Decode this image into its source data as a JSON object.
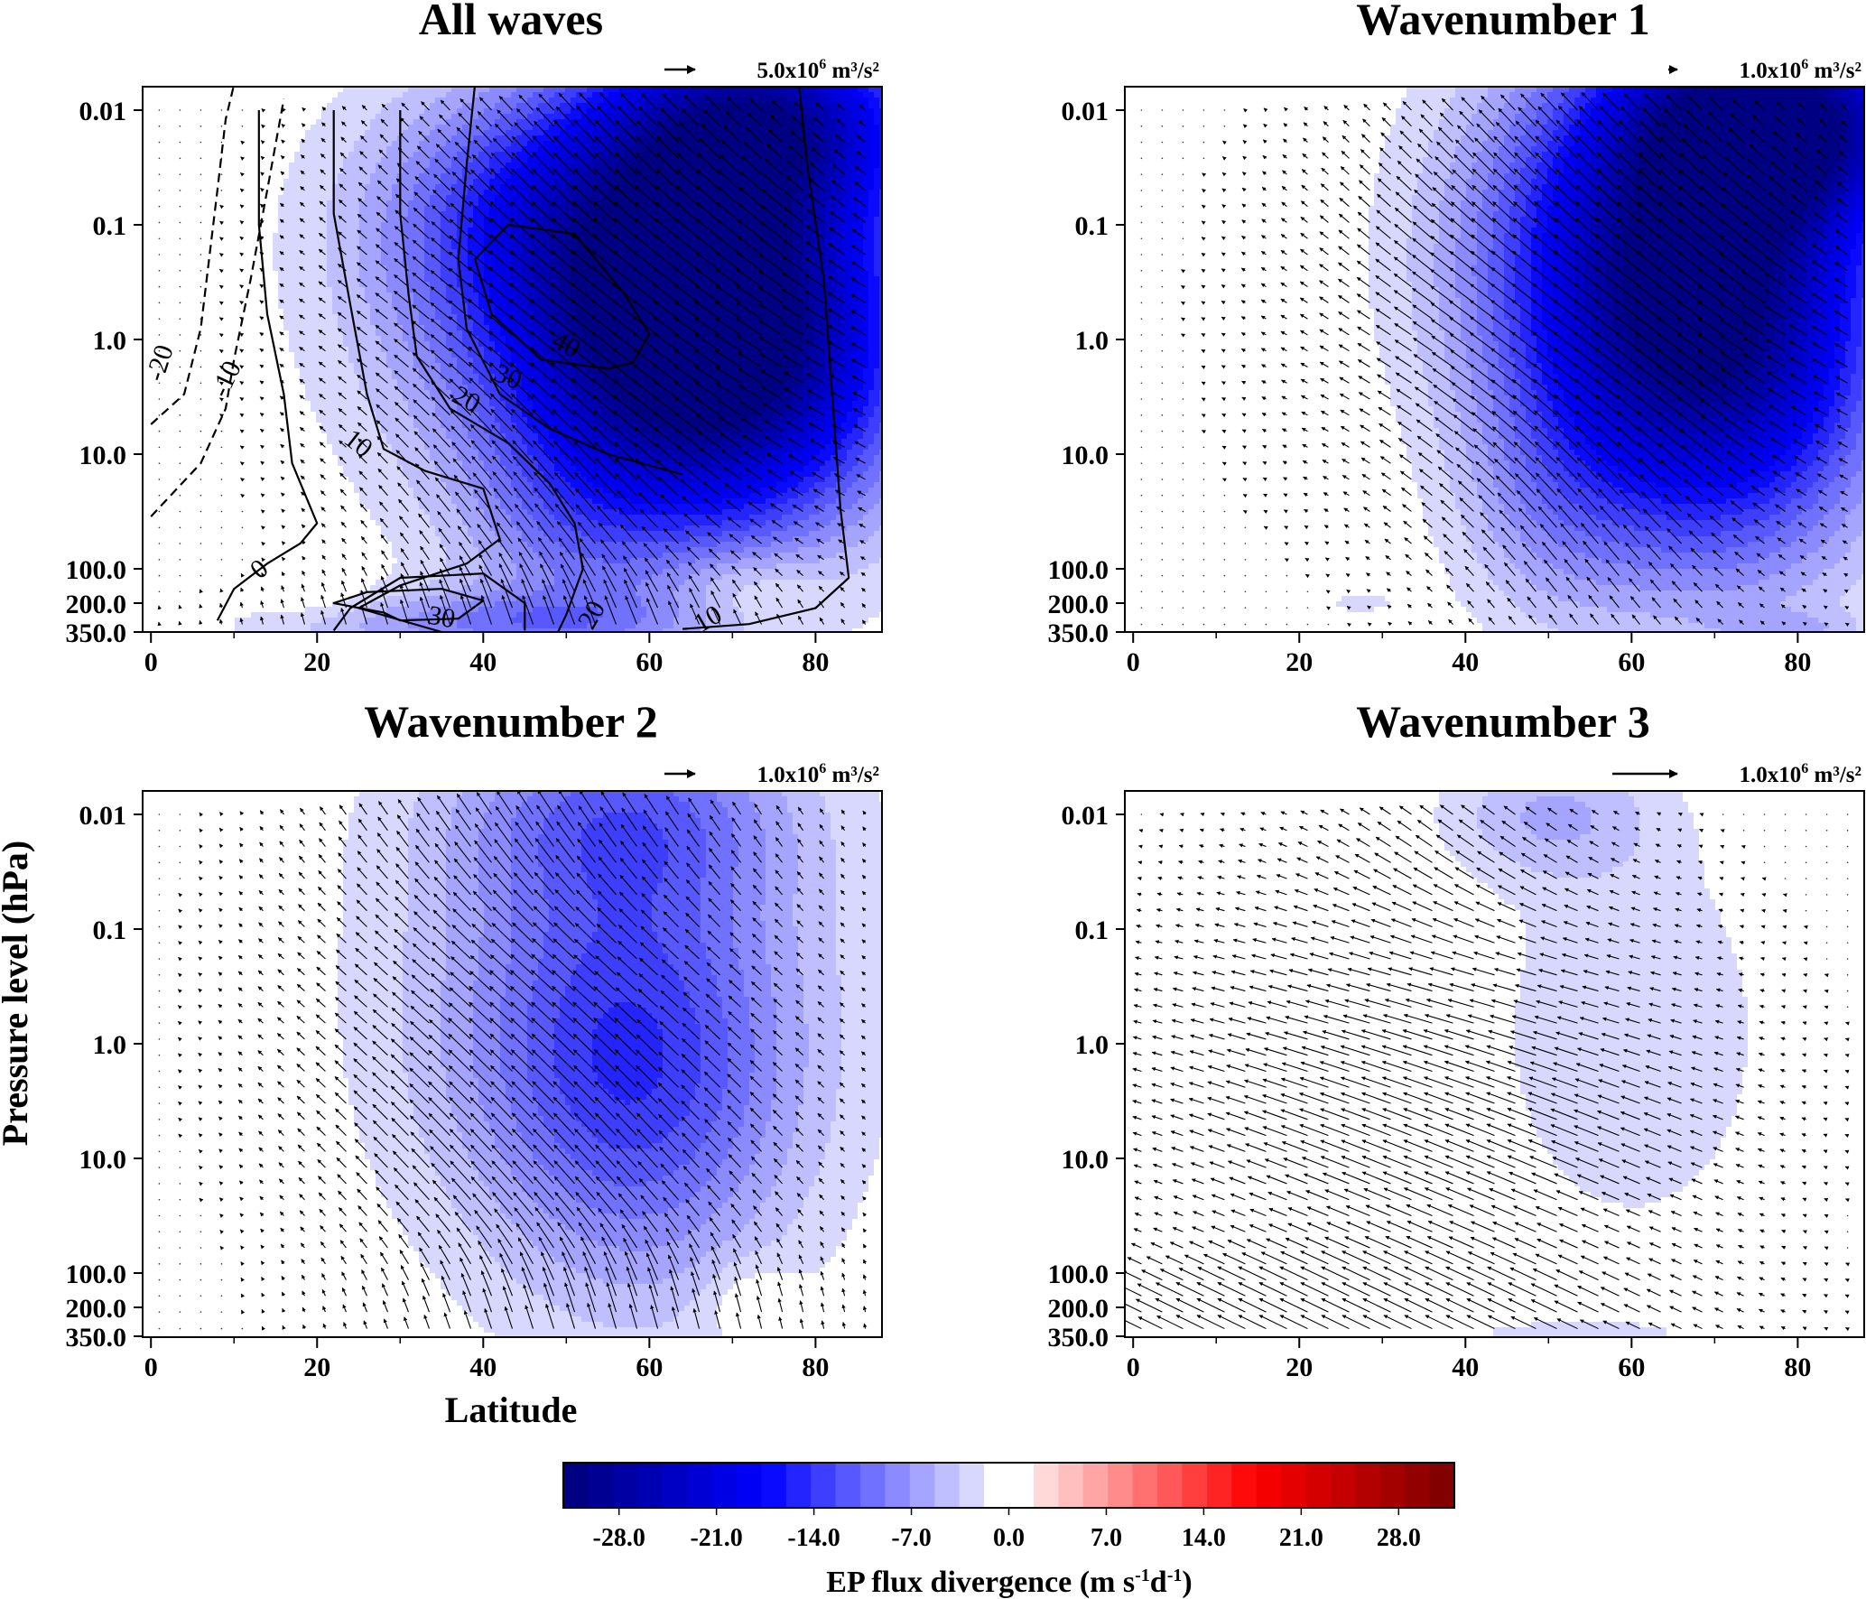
{
  "figure": {
    "ylabel": "Pressure level (hPa)",
    "xlabel": "Latitude",
    "colorbar": {
      "label_main": "EP flux divergence (m s",
      "label_exp1": "-1",
      "label_mid": "d",
      "label_exp2": "-1",
      "label_end": ")",
      "min": -32,
      "max": 32,
      "levels": 36,
      "ticks": [
        "-28.0",
        "-21.0",
        "-14.0",
        "-7.0",
        "0.0",
        "7.0",
        "14.0",
        "21.0",
        "28.0"
      ],
      "tick_values": [
        -28,
        -21,
        -14,
        -7,
        0,
        7,
        14,
        21,
        28
      ],
      "colors": {
        "neg": "#00007a",
        "mid": "#0000ff",
        "zero": "#ffffff",
        "pos": "#ff0000",
        "max": "#7a0000"
      }
    }
  },
  "chart_data": [
    {
      "type": "heatmap",
      "title": "All waves",
      "arrow_scale": {
        "prefix": "5.0x10",
        "exp": "6",
        "unit": " m³/s²"
      },
      "xticks": [
        "0",
        "20",
        "40",
        "60",
        "80"
      ],
      "xtick_values": [
        0,
        20,
        40,
        60,
        80
      ],
      "yticks": [
        "0.01",
        "0.1",
        "1.0",
        "10.0",
        "100.0",
        "200.0",
        "350.0"
      ],
      "xlim": [
        -1,
        88
      ],
      "shading": [
        {
          "lat": 68,
          "plev": 1.0,
          "amp": -32,
          "sx": 15,
          "sy": 1.1
        },
        {
          "lat": 74,
          "plev": 0.012,
          "amp": -22,
          "sx": 13,
          "sy": 0.6
        },
        {
          "lat": 55,
          "plev": 0.4,
          "amp": -10,
          "sx": 20,
          "sy": 1.4
        },
        {
          "lat": 48,
          "plev": 0.08,
          "amp": -8,
          "sx": 14,
          "sy": 0.7
        },
        {
          "lat": 50,
          "plev": 70,
          "amp": -4,
          "sx": 9,
          "sy": 0.7
        },
        {
          "lat": 40,
          "plev": 300,
          "amp": -7,
          "sx": 18,
          "sy": 0.2
        },
        {
          "lat": 72,
          "plev": 150,
          "amp": 3,
          "sx": 6,
          "sy": 0.25
        },
        {
          "lat": 20,
          "plev": 180,
          "amp": 2,
          "sx": 5,
          "sy": 0.12
        }
      ],
      "contours": [
        {
          "label": "-20",
          "dashed": true,
          "points": [
            [
              0,
              5.5
            ],
            [
              4,
              3
            ],
            [
              6,
              0.8
            ],
            [
              7,
              0.2
            ],
            [
              8,
              0.05
            ],
            [
              9,
              0.012
            ],
            [
              10,
              0.006
            ]
          ]
        },
        {
          "label": "-10",
          "dashed": true,
          "points": [
            [
              0,
              35
            ],
            [
              6,
              12
            ],
            [
              9,
              4
            ],
            [
              10,
              1.5
            ],
            [
              12,
              0.3
            ],
            [
              14,
              0.05
            ],
            [
              16,
              0.008
            ]
          ]
        },
        {
          "label": "0",
          "dashed": false,
          "points": [
            [
              8,
              280
            ],
            [
              10,
              150
            ],
            [
              14,
              90
            ],
            [
              18,
              60
            ],
            [
              20,
              40
            ],
            [
              17,
              12
            ],
            [
              16,
              3
            ],
            [
              14,
              0.6
            ],
            [
              13,
              0.1
            ],
            [
              13,
              0.01
            ]
          ]
        },
        {
          "label": "10",
          "dashed": false,
          "points": [
            [
              35,
              350
            ],
            [
              25,
              220
            ],
            [
              30,
              140
            ],
            [
              38,
              90
            ],
            [
              42,
              55
            ],
            [
              40,
              20
            ],
            [
              33,
              14
            ],
            [
              28,
              9
            ],
            [
              26,
              3
            ],
            [
              24,
              0.5
            ],
            [
              22,
              0.08
            ],
            [
              22,
              0.01
            ]
          ]
        },
        {
          "label": "20",
          "dashed": false,
          "points": [
            [
              49,
              350
            ],
            [
              50,
              250
            ],
            [
              52,
              100
            ],
            [
              51,
              40
            ],
            [
              48,
              18
            ],
            [
              43,
              8
            ],
            [
              36,
              4
            ],
            [
              32,
              1.4
            ],
            [
              31,
              0.4
            ],
            [
              30,
              0.08
            ],
            [
              30,
              0.01
            ]
          ]
        },
        {
          "label": "30",
          "dashed": false,
          "points": [
            [
              64,
              15
            ],
            [
              55,
              10
            ],
            [
              48,
              6
            ],
            [
              42,
              3
            ],
            [
              38,
              0.8
            ],
            [
              37,
              0.2
            ],
            [
              38,
              0.03
            ],
            [
              39,
              0.006
            ]
          ]
        },
        {
          "label": "40",
          "dashed": false,
          "points": [
            [
              55,
              1.8
            ],
            [
              47,
              1.5
            ],
            [
              41,
              0.6
            ],
            [
              39,
              0.2
            ],
            [
              43,
              0.1
            ],
            [
              51,
              0.12
            ],
            [
              57,
              0.4
            ],
            [
              60,
              0.9
            ],
            [
              58,
              1.6
            ],
            [
              55,
              1.8
            ]
          ]
        },
        {
          "label": "30",
          "dashed": false,
          "points": [
            [
              28,
              240
            ],
            [
              22,
              200
            ],
            [
              26,
              160
            ],
            [
              35,
              150
            ],
            [
              40,
              190
            ],
            [
              37,
              270
            ],
            [
              30,
              280
            ],
            [
              28,
              240
            ]
          ]
        },
        {
          "label": "10",
          "dashed": false,
          "points": [
            [
              64,
              330
            ],
            [
              72,
              300
            ],
            [
              80,
              220
            ],
            [
              84,
              120
            ],
            [
              83,
              30
            ],
            [
              82,
              3
            ],
            [
              81,
              0.3
            ],
            [
              79,
              0.03
            ],
            [
              78,
              0.006
            ]
          ]
        },
        {
          "label": "",
          "dashed": false,
          "points": [
            [
              22,
              340
            ],
            [
              24,
              220
            ],
            [
              30,
              120
            ],
            [
              40,
              110
            ],
            [
              45,
              200
            ],
            [
              45,
              340
            ]
          ]
        }
      ],
      "contour_labels": [
        {
          "text": "-20",
          "lat": 1,
          "plev": 1.6,
          "rot": -72
        },
        {
          "text": "-10",
          "lat": 9,
          "plev": 2.2,
          "rot": -65
        },
        {
          "text": "0",
          "lat": 13,
          "plev": 100,
          "rot": -40
        },
        {
          "text": "10",
          "lat": 25,
          "plev": 8,
          "rot": 38
        },
        {
          "text": "20",
          "lat": 38,
          "plev": 3.3,
          "rot": 28
        },
        {
          "text": "30",
          "lat": 43,
          "plev": 2.1,
          "rot": 22
        },
        {
          "text": "40",
          "lat": 50,
          "plev": 1.1,
          "rot": 28
        },
        {
          "text": "30",
          "lat": 35,
          "plev": 260,
          "rot": 10
        },
        {
          "text": "20",
          "lat": 53,
          "plev": 250,
          "rot": -60
        },
        {
          "text": "10",
          "lat": 67,
          "plev": 270,
          "rot": -30
        }
      ],
      "arrows": [
        {
          "lat": 60,
          "plev": 1.0,
          "u": -1.0,
          "v": -0.5,
          "sx": 22,
          "sy": 1.3,
          "amp": 1
        },
        {
          "lat": 55,
          "plev": 0.05,
          "u": -0.5,
          "v": -0.8,
          "sx": 18,
          "sy": 0.8,
          "amp": 0.9
        },
        {
          "lat": 48,
          "plev": 20,
          "u": -0.4,
          "v": -0.9,
          "sx": 14,
          "sy": 1.0,
          "amp": 0.8
        },
        {
          "lat": 45,
          "plev": 300,
          "u": -0.2,
          "v": -1.0,
          "sx": 20,
          "sy": 0.25,
          "amp": 0.9
        }
      ]
    },
    {
      "type": "heatmap",
      "title": "Wavenumber 1",
      "arrow_scale": {
        "prefix": "1.0x10",
        "exp": "6",
        "unit": " m³/s²"
      },
      "xticks": [
        "0",
        "20",
        "40",
        "60",
        "80"
      ],
      "xtick_values": [
        0,
        20,
        40,
        60,
        80
      ],
      "yticks": [
        "0.01",
        "0.1",
        "1.0",
        "10.0",
        "100.0",
        "200.0",
        "350.0"
      ],
      "xlim": [
        -1,
        88
      ],
      "shading": [
        {
          "lat": 70,
          "plev": 0.6,
          "amp": -30,
          "sx": 14,
          "sy": 1.4
        },
        {
          "lat": 78,
          "plev": 0.012,
          "amp": -26,
          "sx": 12,
          "sy": 0.6
        },
        {
          "lat": 55,
          "plev": 0.15,
          "amp": -9,
          "sx": 14,
          "sy": 1.2
        },
        {
          "lat": 50,
          "plev": 30,
          "amp": -4,
          "sx": 8,
          "sy": 0.8
        },
        {
          "lat": 80,
          "plev": 330,
          "amp": -3,
          "sx": 6,
          "sy": 0.1
        },
        {
          "lat": 27,
          "plev": 200,
          "amp": -2,
          "sx": 5,
          "sy": 0.1
        }
      ],
      "contours": [],
      "contour_labels": [],
      "arrows": [
        {
          "lat": 58,
          "plev": 1.0,
          "u": -1.0,
          "v": -0.5,
          "sx": 22,
          "sy": 1.3,
          "amp": 1
        },
        {
          "lat": 55,
          "plev": 0.05,
          "u": -0.5,
          "v": -0.8,
          "sx": 18,
          "sy": 0.8,
          "amp": 0.9
        },
        {
          "lat": 55,
          "plev": 20,
          "u": -0.4,
          "v": -0.9,
          "sx": 12,
          "sy": 1.0,
          "amp": 0.7
        }
      ]
    },
    {
      "type": "heatmap",
      "title": "Wavenumber 2",
      "arrow_scale": {
        "prefix": "1.0x10",
        "exp": "6",
        "unit": " m³/s²"
      },
      "xticks": [
        "0",
        "20",
        "40",
        "60",
        "80"
      ],
      "xtick_values": [
        0,
        20,
        40,
        60,
        80
      ],
      "yticks": [
        "0.01",
        "0.1",
        "1.0",
        "10.0",
        "100.0",
        "200.0",
        "350.0"
      ],
      "xlim": [
        -1,
        88
      ],
      "shading": [
        {
          "lat": 57,
          "plev": 1.0,
          "amp": -9,
          "sx": 14,
          "sy": 1.2
        },
        {
          "lat": 57,
          "plev": 0.01,
          "amp": -7,
          "sx": 14,
          "sy": 0.6
        },
        {
          "lat": 55,
          "plev": 0.2,
          "amp": -4,
          "sx": 22,
          "sy": 2.0
        },
        {
          "lat": 60,
          "plev": 10,
          "amp": -3,
          "sx": 12,
          "sy": 1.2
        },
        {
          "lat": 72,
          "plev": 170,
          "amp": 2.5,
          "sx": 4,
          "sy": 0.25
        }
      ],
      "contours": [],
      "contour_labels": [],
      "arrows": [
        {
          "lat": 48,
          "plev": 0.6,
          "u": -0.8,
          "v": -0.7,
          "sx": 20,
          "sy": 1.3,
          "amp": 1
        },
        {
          "lat": 50,
          "plev": 0.01,
          "u": -0.4,
          "v": -0.9,
          "sx": 18,
          "sy": 0.6,
          "amp": 0.7
        },
        {
          "lat": 50,
          "plev": 15,
          "u": -0.6,
          "v": -0.8,
          "sx": 16,
          "sy": 0.8,
          "amp": 0.8
        },
        {
          "lat": 55,
          "plev": 200,
          "u": -0.1,
          "v": -1.0,
          "sx": 18,
          "sy": 0.35,
          "amp": 0.8
        }
      ]
    },
    {
      "type": "heatmap",
      "title": "Wavenumber 3",
      "arrow_scale": {
        "prefix": "1.0x10",
        "exp": "6",
        "unit": " m³/s²"
      },
      "xticks": [
        "0",
        "20",
        "40",
        "60",
        "80"
      ],
      "xtick_values": [
        0,
        20,
        40,
        60,
        80
      ],
      "yticks": [
        "0.01",
        "0.1",
        "1.0",
        "10.0",
        "100.0",
        "200.0",
        "350.0"
      ],
      "xlim": [
        -1,
        88
      ],
      "shading": [
        {
          "lat": 50,
          "plev": 0.01,
          "amp": -5,
          "sx": 9,
          "sy": 0.4
        },
        {
          "lat": 60,
          "plev": 0.8,
          "amp": -3.5,
          "sx": 12,
          "sy": 1.3
        },
        {
          "lat": 52,
          "plev": 330,
          "amp": -2,
          "sx": 14,
          "sy": 0.1
        },
        {
          "lat": 22,
          "plev": 140,
          "amp": 1.5,
          "sx": 4,
          "sy": 0.1
        }
      ],
      "contours": [],
      "contour_labels": [],
      "arrows": [
        {
          "lat": 35,
          "plev": 1.0,
          "u": -1.0,
          "v": -0.25,
          "sx": 22,
          "sy": 1.2,
          "amp": 0.9
        },
        {
          "lat": 40,
          "plev": 0.02,
          "u": -0.6,
          "v": -0.7,
          "sx": 12,
          "sy": 0.5,
          "amp": 0.5
        },
        {
          "lat": 40,
          "plev": 10,
          "u": -0.9,
          "v": -0.5,
          "sx": 20,
          "sy": 0.7,
          "amp": 0.7
        },
        {
          "lat": 25,
          "plev": 220,
          "u": -1.0,
          "v": -0.5,
          "sx": 25,
          "sy": 0.35,
          "amp": 1.3
        }
      ]
    }
  ]
}
